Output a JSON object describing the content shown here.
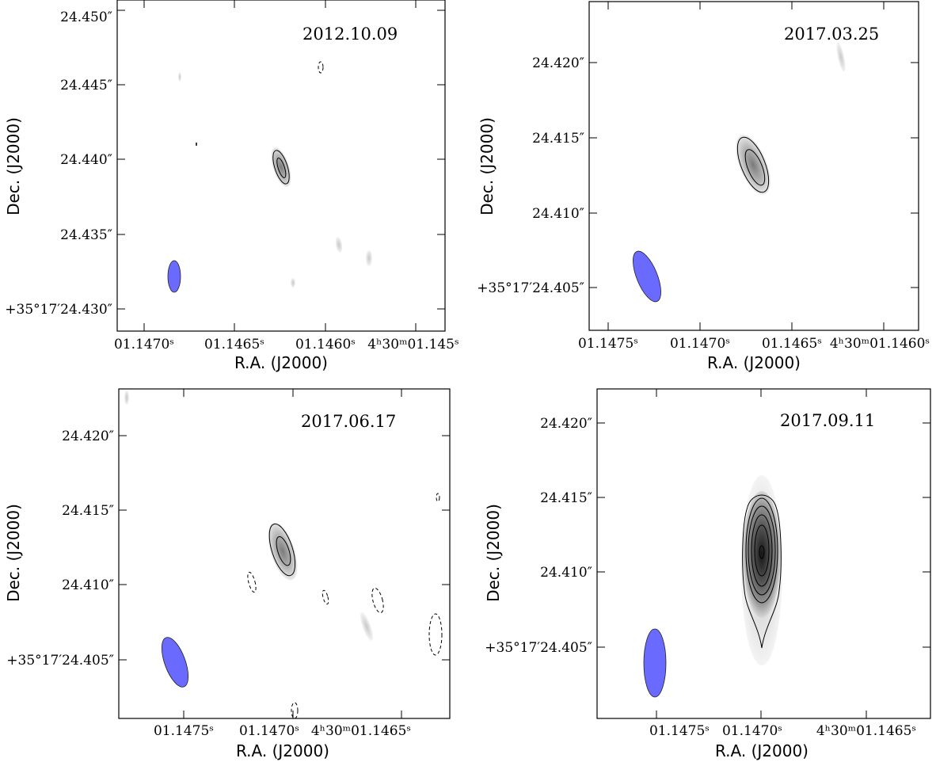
{
  "chart_data": [
    {
      "type": "contour",
      "panel": "top-left",
      "date": "2012.10.09",
      "xlabel": "R.A. (J2000)",
      "ylabel": "Dec. (J2000)",
      "xticks": [
        "01.1470ˢ",
        "01.1465ˢ",
        "01.1460ˢ",
        "4ʰ30ᵐ01.145ˢ"
      ],
      "yticks": [
        "+35°17′24.430″",
        "24.435″",
        "24.440″",
        "24.445″",
        "24.450″"
      ],
      "source_peak": {
        "ra_s": 1.14627,
        "dec_as": 24.4397
      },
      "beam_color": "#6a6aff"
    },
    {
      "type": "contour",
      "panel": "top-right",
      "date": "2017.03.25",
      "xlabel": "R.A. (J2000)",
      "ylabel": "Dec. (J2000)",
      "xticks": [
        "01.1475ˢ",
        "01.1470ˢ",
        "01.1465ˢ",
        "4ʰ30ᵐ01.1460ˢ"
      ],
      "yticks": [
        "+35°17′24.405″",
        "24.410″",
        "24.415″",
        "24.420″"
      ],
      "source_peak": {
        "ra_s": 1.14676,
        "dec_as": 24.4132
      },
      "beam_color": "#6a6aff"
    },
    {
      "type": "contour",
      "panel": "bottom-left",
      "date": "2017.06.17",
      "xlabel": "R.A. (J2000)",
      "ylabel": "Dec. (J2000)",
      "xticks": [
        "01.1475ˢ",
        "01.1470ˢ",
        "4ʰ30ᵐ01.1465ˢ"
      ],
      "yticks": [
        "+35°17′24.405″",
        "24.410″",
        "24.415″",
        "24.420″"
      ],
      "source_peak": {
        "ra_s": 1.14695,
        "dec_as": 24.4121
      },
      "beam_color": "#6a6aff"
    },
    {
      "type": "contour",
      "panel": "bottom-right",
      "date": "2017.09.11",
      "xlabel": "R.A. (J2000)",
      "ylabel": "Dec. (J2000)",
      "xticks": [
        "01.1475ˢ",
        "01.1470ˢ",
        "4ʰ30ᵐ01.1465ˢ"
      ],
      "yticks": [
        "+35°17′24.405″",
        "24.410″",
        "24.415″",
        "24.420″"
      ],
      "source_peak": {
        "ra_s": 1.14703,
        "dec_as": 24.4115
      },
      "beam_color": "#6a6aff"
    }
  ]
}
